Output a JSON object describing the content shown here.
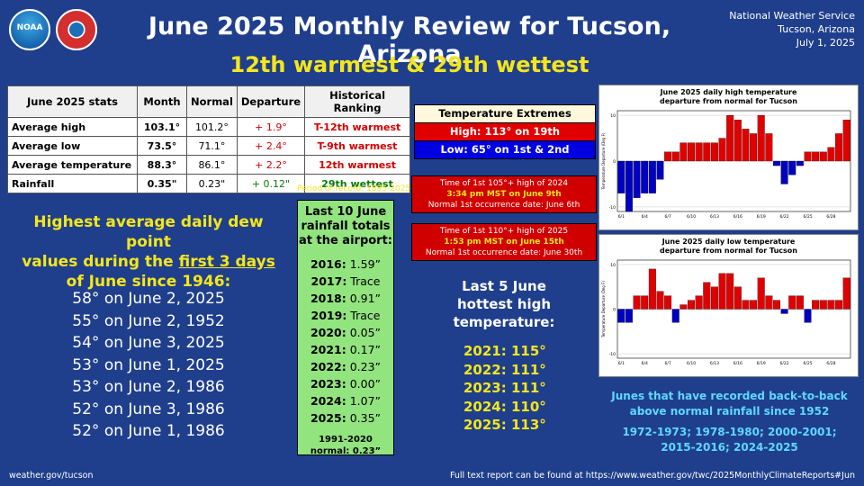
{
  "logos": {
    "noaa": "NOAA",
    "nws": "National Weather Service"
  },
  "header": {
    "title": "June 2025 Monthly Review for Tucson, Arizona",
    "subtitle": "12th warmest & 29th wettest"
  },
  "org": {
    "line1": "National Weather Service",
    "line2": "Tucson, Arizona",
    "line3": "July 1, 2025"
  },
  "stats": {
    "headers": [
      "June 2025 stats",
      "Month",
      "Normal",
      "Departure",
      "Historical Ranking"
    ],
    "rows": [
      [
        "Average high",
        "103.1°",
        "101.2°",
        "+ 1.9°",
        "T-12th warmest"
      ],
      [
        "Average low",
        "73.5°",
        "71.1°",
        "+ 2.4°",
        "T-9th warmest"
      ],
      [
        "Average temperature",
        "88.3°",
        "86.1°",
        "+ 2.2°",
        "12th warmest"
      ],
      [
        "Rainfall",
        "0.35\"",
        "0.23\"",
        "+ 0.12\"",
        "29th wettest"
      ]
    ],
    "period": "Period of record: 1895-2025",
    "colors": {
      "warm": "#d40000",
      "wet": "#0a7a0a"
    }
  },
  "dew": {
    "head1": "Highest average daily dew point",
    "head2a": "values during the ",
    "head2b": "first 3 days",
    "head3": "of June since 1946:",
    "items": [
      "58° on June 2, 2025",
      "55° on June 2, 1952",
      "54° on June 3, 2025",
      "53° on June 1, 2025",
      "53° on June 2, 1986",
      "52° on June 3, 1986",
      "52° on June 1, 1986"
    ]
  },
  "rain": {
    "head": [
      "Last 10 June",
      "rainfall totals",
      "at the airport:"
    ],
    "rows": [
      {
        "year": "2016:",
        "val": " 1.59”"
      },
      {
        "year": "2017:",
        "val": " Trace"
      },
      {
        "year": "2018:",
        "val": " 0.91”"
      },
      {
        "year": "2019:",
        "val": " Trace"
      },
      {
        "year": "2020:",
        "val": "  0.05”"
      },
      {
        "year": "2021:",
        "val": "  0.17”"
      },
      {
        "year": "2022:",
        "val": "  0.23”"
      },
      {
        "year": "2023:",
        "val": "  0.00”"
      },
      {
        "year": "2024:",
        "val": " 1.07”"
      },
      {
        "year": "2025:",
        "val": " 0.35”"
      }
    ],
    "norm1": "1991-2020",
    "norm2": "normal: 0.23”"
  },
  "extremes": {
    "title": "Temperature Extremes",
    "high": "High: 113° on 19th",
    "low": "Low: 65° on 1st & 2nd"
  },
  "occ1": {
    "l1": "Time of 1st 105°+ high of 2024",
    "l2": "3:34 pm MST on June 9th",
    "l3": "Normal 1st occurrence date: June 6th"
  },
  "occ2": {
    "l1": "Time of 1st 110°+ high of 2025",
    "l2": "1:53 pm MST on June 15th",
    "l3": "Normal 1st occurrence date: June 30th"
  },
  "hot": {
    "head": [
      "Last 5 June",
      "hottest high",
      "temperature:"
    ],
    "items": [
      "2021: 115°",
      "2022: 111°",
      "2023: 111°",
      "2024: 110°",
      "2025: 113°"
    ]
  },
  "chart_data": [
    {
      "type": "bar",
      "title": "June 2025 daily high temperature departure from normal for Tucson",
      "ylabel": "Temperature Departure (Deg F)",
      "categories": [
        "6/1",
        "6/2",
        "6/3",
        "6/4",
        "6/5",
        "6/6",
        "6/7",
        "6/8",
        "6/9",
        "6/10",
        "6/11",
        "6/12",
        "6/13",
        "6/14",
        "6/15",
        "6/16",
        "6/17",
        "6/18",
        "6/19",
        "6/20",
        "6/21",
        "6/22",
        "6/23",
        "6/24",
        "6/25",
        "6/26",
        "6/27",
        "6/28",
        "6/29",
        "6/30"
      ],
      "xticks": [
        "6/1",
        "6/4",
        "6/7",
        "6/10",
        "6/13",
        "6/16",
        "6/19",
        "6/22",
        "6/25",
        "6/28"
      ],
      "yticks": [
        "10",
        "0",
        "-10"
      ],
      "values": [
        -7,
        -11,
        -8,
        -7,
        -7,
        -4,
        2,
        2,
        4,
        4,
        4,
        4,
        4,
        5,
        10,
        9,
        7,
        6,
        10,
        6,
        -1,
        -5,
        -3,
        -1,
        2,
        2,
        2,
        3,
        6,
        9
      ],
      "ylim": [
        -11,
        11
      ],
      "colors": {
        "positive": "#e00000",
        "negative": "#0000c0"
      }
    },
    {
      "type": "bar",
      "title": "June 2025 daily low temperature departure from normal for Tucson",
      "ylabel": "Temperature Departure (Deg F)",
      "categories": [
        "6/1",
        "6/2",
        "6/3",
        "6/4",
        "6/5",
        "6/6",
        "6/7",
        "6/8",
        "6/9",
        "6/10",
        "6/11",
        "6/12",
        "6/13",
        "6/14",
        "6/15",
        "6/16",
        "6/17",
        "6/18",
        "6/19",
        "6/20",
        "6/21",
        "6/22",
        "6/23",
        "6/24",
        "6/25",
        "6/26",
        "6/27",
        "6/28",
        "6/29",
        "6/30"
      ],
      "xticks": [
        "6/1",
        "6/4",
        "6/7",
        "6/10",
        "6/13",
        "6/16",
        "6/19",
        "6/22",
        "6/25",
        "6/28"
      ],
      "yticks": [
        "10",
        "0",
        "-10"
      ],
      "values": [
        -3,
        -3,
        3,
        3,
        9,
        4,
        3,
        -3,
        1,
        2,
        3,
        6,
        5,
        8,
        8,
        5,
        2,
        2,
        7,
        3,
        2,
        -1,
        3,
        3,
        -3,
        2,
        2,
        2,
        2,
        7
      ],
      "ylim": [
        -11,
        11
      ],
      "colors": {
        "positive": "#e00000",
        "negative": "#0000c0"
      }
    }
  ],
  "b2b": {
    "head1": "Junes that have recorded back-to-back",
    "head2": "above normal rainfall since 1952",
    "list1": "1972-1973; 1978-1980; 2000-2001;",
    "list2": "2015-2016; 2024-2025"
  },
  "footer": {
    "left": "weather.gov/tucson",
    "right": "Full text report can be found at https://www.weather.gov/twc/2025MonthlyClimateReports#Jun"
  }
}
